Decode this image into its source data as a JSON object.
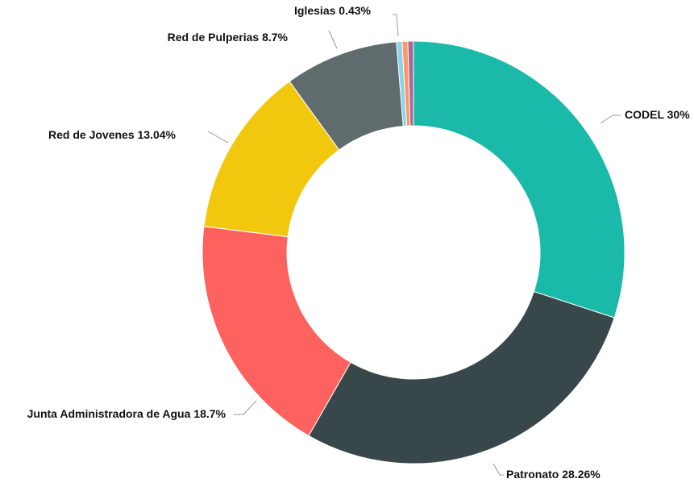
{
  "chart_data": {
    "type": "donut",
    "categories": [
      "CODEL",
      "Patronato",
      "Junta Administradora de Agua",
      "Red de Jovenes",
      "Red de Pulperias",
      "Iglesias",
      null,
      null
    ],
    "values": [
      30,
      28.26,
      18.7,
      13.04,
      8.7,
      0.43,
      0.43,
      0.43
    ],
    "value_labels": [
      "30%",
      "28.26%",
      "18.7%",
      "13.04%",
      "8.7%",
      "0.43%",
      null,
      null
    ],
    "colors": [
      "#1bb9aa",
      "#37474a",
      "#fd625e",
      "#f2c80f",
      "#5f6b6d",
      "#8ad4eb",
      "#fe9666",
      "#a66999"
    ]
  }
}
